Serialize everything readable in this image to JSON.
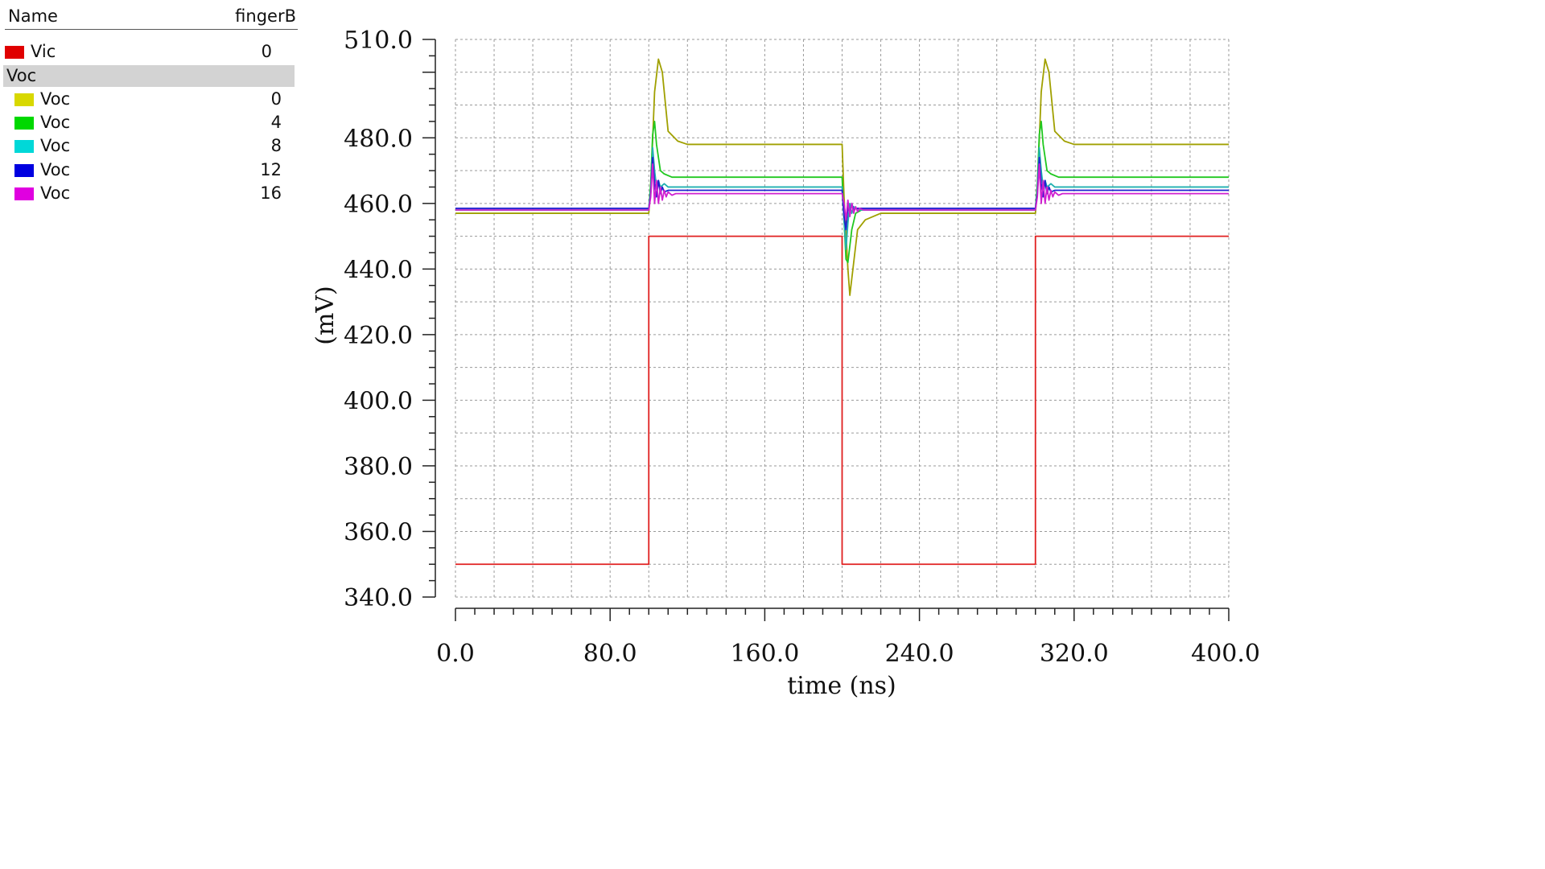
{
  "legend": {
    "header": {
      "name": "Name",
      "param": "fingerB"
    },
    "top_item": {
      "label": "Vic",
      "value": "0",
      "color": "#e00000"
    },
    "group": {
      "label": "Voc"
    },
    "items": [
      {
        "label": "Voc",
        "value": "0",
        "color": "#d8d800"
      },
      {
        "label": "Voc",
        "value": "4",
        "color": "#00d800"
      },
      {
        "label": "Voc",
        "value": "8",
        "color": "#00d8d8"
      },
      {
        "label": "Voc",
        "value": "12",
        "color": "#0000e0"
      },
      {
        "label": "Voc",
        "value": "16",
        "color": "#e000e0"
      }
    ]
  },
  "chart_data": {
    "type": "line",
    "xlabel": "time (ns)",
    "ylabel": "(mV)",
    "xlim": [
      0,
      400
    ],
    "ylim": [
      340,
      510
    ],
    "x_ticks": [
      "0.0",
      "80.0",
      "160.0",
      "240.0",
      "320.0",
      "400.0"
    ],
    "y_ticks": [
      "340.0",
      "360.0",
      "380.0",
      "400.0",
      "420.0",
      "440.0",
      "460.0",
      "480.0",
      "510.0"
    ],
    "grid": true,
    "series": [
      {
        "name": "Vic",
        "param": "0",
        "color": "#e02020",
        "x": [
          0,
          100,
          100,
          200,
          200,
          300,
          300,
          400
        ],
        "y": [
          350,
          350,
          450,
          450,
          350,
          350,
          450,
          450
        ]
      },
      {
        "name": "Voc",
        "param": "0",
        "color": "#a0a000",
        "x": [
          0,
          100,
          101,
          103,
          105,
          107,
          110,
          115,
          120,
          200,
          201,
          203,
          204,
          206,
          208,
          212,
          220,
          300,
          301,
          303,
          305,
          307,
          310,
          315,
          320,
          400
        ],
        "y": [
          457,
          457,
          465,
          494,
          504,
          500,
          482,
          479,
          478,
          478,
          462,
          440,
          432,
          442,
          452,
          455,
          457,
          457,
          465,
          494,
          504,
          500,
          482,
          479,
          478,
          478
        ]
      },
      {
        "name": "Voc",
        "param": "4",
        "color": "#20c820",
        "x": [
          0,
          100,
          101,
          102,
          103,
          104,
          106,
          108,
          112,
          200,
          201,
          202,
          203,
          205,
          207,
          210,
          300,
          301,
          302,
          303,
          304,
          306,
          308,
          312,
          400
        ],
        "y": [
          458,
          458,
          466,
          481,
          485,
          478,
          470,
          469,
          468,
          468,
          455,
          443,
          442,
          452,
          457,
          458,
          458,
          466,
          481,
          485,
          478,
          470,
          469,
          468,
          468
        ]
      },
      {
        "name": "Voc",
        "param": "8",
        "color": "#20b0b0",
        "x": [
          0,
          100,
          101,
          102,
          103,
          104,
          105,
          106,
          108,
          110,
          200,
          201,
          202,
          203,
          204,
          205,
          206,
          208,
          300,
          301,
          302,
          303,
          304,
          305,
          306,
          308,
          310,
          400
        ],
        "y": [
          458,
          458,
          464,
          477,
          470,
          465,
          467,
          465,
          466,
          465,
          465,
          455,
          446,
          454,
          460,
          457,
          459,
          458,
          458,
          464,
          477,
          470,
          465,
          467,
          465,
          466,
          465,
          465
        ]
      },
      {
        "name": "Voc",
        "param": "12",
        "color": "#2020d0",
        "x": [
          0,
          100,
          101,
          102,
          103,
          104,
          105,
          106,
          107,
          108,
          110,
          200,
          201,
          202,
          203,
          204,
          205,
          206,
          207,
          300,
          301,
          302,
          303,
          304,
          305,
          306,
          307,
          308,
          310,
          400
        ],
        "y": [
          458.5,
          458.5,
          463,
          474,
          466,
          462,
          467,
          463,
          465,
          463.5,
          464,
          464,
          456,
          452,
          459,
          457,
          460,
          458,
          458.5,
          458.5,
          463,
          474,
          466,
          462,
          467,
          463,
          465,
          463.5,
          464,
          464
        ]
      },
      {
        "name": "Voc",
        "param": "16",
        "color": "#d020d0",
        "x": [
          0,
          100,
          101,
          102,
          103,
          104,
          105,
          106,
          107,
          108,
          109,
          110,
          112,
          114,
          200,
          201,
          202,
          203,
          204,
          205,
          206,
          207,
          208,
          209,
          211,
          300,
          301,
          302,
          303,
          304,
          305,
          306,
          307,
          308,
          309,
          310,
          312,
          314,
          400
        ],
        "y": [
          458,
          458,
          462,
          472,
          460,
          467,
          460,
          465,
          461,
          464,
          462,
          463.5,
          462.5,
          463,
          463,
          460,
          455,
          461,
          456,
          460,
          457,
          459,
          457.5,
          458.5,
          458,
          458,
          462,
          472,
          460,
          467,
          460,
          465,
          461,
          464,
          462,
          463.5,
          462.5,
          463,
          463
        ]
      }
    ]
  }
}
